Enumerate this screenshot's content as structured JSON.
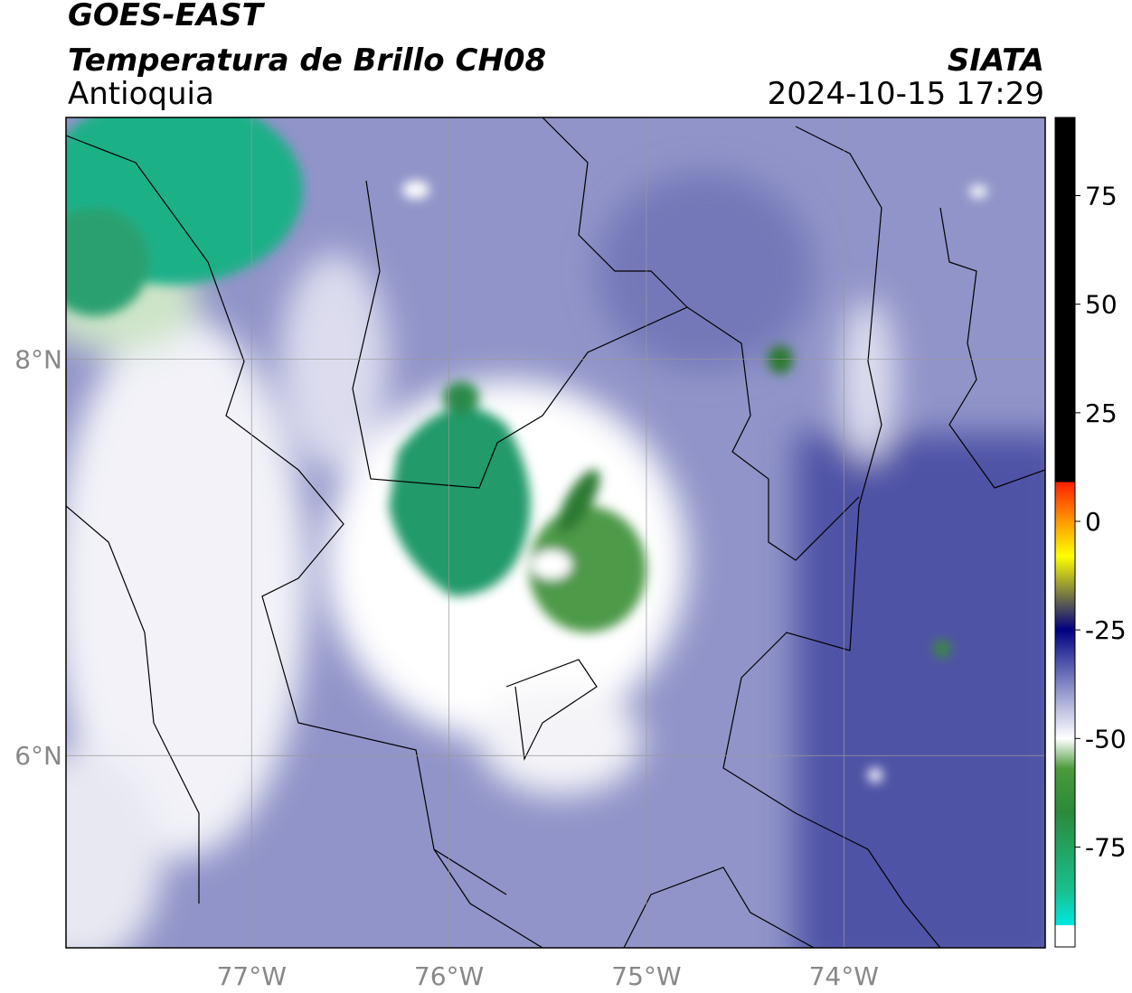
{
  "map": {
    "title": "GOES-EAST",
    "subtitle": "Temperatura de Brillo CH08",
    "region": "Antioquia",
    "source": "SIATA",
    "timestamp": "2024-10-15 17:29",
    "xlim": [
      -77.94,
      -72.98
    ],
    "ylim": [
      5.03,
      9.22
    ],
    "xticks": [
      {
        "value": -77,
        "label": "77°W"
      },
      {
        "value": -76,
        "label": "76°W"
      },
      {
        "value": -75,
        "label": "75°W"
      },
      {
        "value": -74,
        "label": "74°W"
      }
    ],
    "yticks": [
      {
        "value": 8,
        "label": "8°N"
      },
      {
        "value": 6,
        "label": "6°N"
      }
    ],
    "grid": true,
    "colorbar": {
      "lim": [
        -98,
        93
      ],
      "ticks": [
        75,
        50,
        25,
        0,
        -25,
        -50,
        -75
      ],
      "stops": [
        {
          "value": 93,
          "color": "#000000"
        },
        {
          "value": 9,
          "color": "#000000"
        },
        {
          "value": 9,
          "color": "#ff2000"
        },
        {
          "value": 0,
          "color": "#ff9900"
        },
        {
          "value": -8,
          "color": "#ffff00"
        },
        {
          "value": -17,
          "color": "#777744"
        },
        {
          "value": -25,
          "color": "#000080"
        },
        {
          "value": -32,
          "color": "#4a4ea8"
        },
        {
          "value": -42,
          "color": "#b0b4dc"
        },
        {
          "value": -50,
          "color": "#ffffff"
        },
        {
          "value": -57,
          "color": "#4a9a3a"
        },
        {
          "value": -67,
          "color": "#2a8a3a"
        },
        {
          "value": -85,
          "color": "#1abf8f"
        },
        {
          "value": -93,
          "color": "#00e8e0"
        },
        {
          "value": -93,
          "color": "#ffffff"
        },
        {
          "value": -98,
          "color": "#ffffff"
        }
      ]
    }
  }
}
